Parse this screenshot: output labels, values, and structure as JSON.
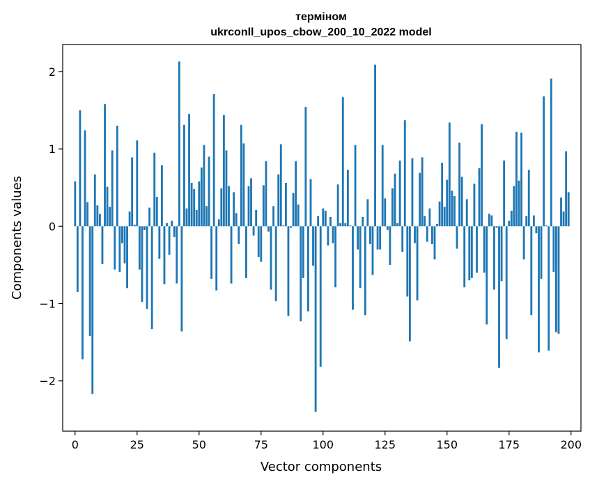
{
  "chart_data": {
    "type": "bar",
    "title": "терміном",
    "subtitle": "ukrconll_upos_cbow_200_10_2022 model",
    "xlabel": "Vector components",
    "ylabel": "Components values",
    "xlim": [
      -5,
      204
    ],
    "ylim": [
      -2.65,
      2.35
    ],
    "xticks": [
      0,
      25,
      50,
      75,
      100,
      125,
      150,
      175,
      200
    ],
    "yticks": [
      -2,
      -1,
      0,
      1,
      2
    ],
    "xtick_labels": [
      "0",
      "25",
      "50",
      "75",
      "100",
      "125",
      "150",
      "175",
      "200"
    ],
    "ytick_labels": [
      "−2",
      "−1",
      "0",
      "1",
      "2"
    ],
    "grid": false,
    "values": [
      0.58,
      -0.85,
      1.5,
      -1.72,
      1.24,
      0.31,
      -1.42,
      -2.17,
      0.67,
      0.27,
      0.16,
      -0.49,
      1.58,
      0.51,
      0.25,
      0.98,
      -0.56,
      1.3,
      -0.59,
      -0.22,
      -0.48,
      -0.8,
      0.19,
      0.89,
      0.02,
      1.11,
      -0.56,
      -0.98,
      -0.05,
      -1.07,
      0.24,
      -1.33,
      0.95,
      0.38,
      -0.42,
      0.79,
      -0.75,
      0.04,
      -0.37,
      0.07,
      -0.14,
      -0.74,
      2.13,
      -1.36,
      1.31,
      0.23,
      1.45,
      0.56,
      0.48,
      0.21,
      0.58,
      0.76,
      1.05,
      0.26,
      0.9,
      -0.68,
      1.71,
      -0.83,
      0.09,
      0.49,
      1.44,
      0.98,
      0.52,
      -0.74,
      0.44,
      0.17,
      -0.23,
      1.31,
      1.07,
      -0.67,
      0.52,
      0.62,
      -0.12,
      0.21,
      -0.4,
      -0.46,
      0.53,
      0.84,
      -0.07,
      -0.82,
      0.26,
      -0.97,
      0.67,
      1.06,
      0.01,
      0.56,
      -1.16,
      -0.02,
      0.43,
      0.84,
      0.28,
      -1.23,
      -0.67,
      1.54,
      -1.1,
      0.61,
      -0.51,
      -2.4,
      0.13,
      -1.82,
      0.23,
      0.2,
      -0.25,
      0.12,
      -0.22,
      -0.79,
      0.54,
      0.04,
      1.67,
      0.04,
      0.73,
      0.01,
      -1.08,
      1.05,
      -0.3,
      -0.8,
      0.12,
      -1.15,
      0.35,
      -0.23,
      -0.63,
      2.09,
      -0.3,
      -0.3,
      1.05,
      0.36,
      -0.05,
      -0.5,
      0.49,
      0.68,
      0.04,
      0.85,
      -0.33,
      1.37,
      -0.91,
      -1.49,
      0.88,
      -0.22,
      -0.96,
      0.69,
      0.89,
      0.13,
      -0.2,
      0.23,
      -0.23,
      -0.43,
      0.03,
      0.32,
      0.82,
      0.25,
      0.6,
      1.34,
      0.46,
      0.39,
      -0.29,
      1.08,
      0.64,
      -0.79,
      0.35,
      -0.7,
      -0.67,
      0.55,
      -0.6,
      0.75,
      1.32,
      -0.6,
      -1.27,
      0.16,
      0.14,
      -0.82,
      -0.02,
      -1.83,
      -0.71,
      0.85,
      -1.46,
      0.07,
      0.2,
      0.52,
      1.22,
      0.59,
      1.21,
      -0.43,
      0.13,
      0.73,
      -1.15,
      0.14,
      -0.09,
      -1.63,
      -0.68,
      1.68,
      0.01,
      -1.61,
      1.91,
      -0.59,
      -1.37,
      -1.39,
      0.37,
      0.19,
      0.97,
      0.44
    ]
  }
}
